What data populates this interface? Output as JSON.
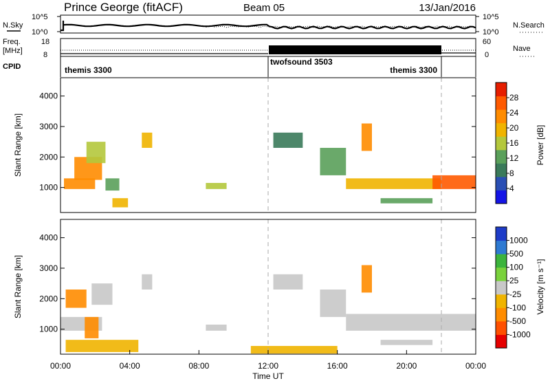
{
  "header": {
    "station": "Prince George (fitACF)",
    "beam": "Beam 05",
    "date": "13/Jan/2016"
  },
  "strip_labels": {
    "nsky": "N.Sky",
    "nsearch": "N.Search",
    "freq": "Freq.",
    "freq_unit": "[MHz]",
    "nave": "Nave",
    "cpid": "CPID",
    "noise_ticks": [
      "10^5",
      "10^0"
    ],
    "freq_ticks": [
      "18",
      "8"
    ],
    "nave_ticks": [
      "60",
      "0"
    ]
  },
  "cpid_segments": [
    {
      "label": "themis 3300",
      "start": 0,
      "end": 12
    },
    {
      "label": "twofsound 3503",
      "start": 12,
      "end": 22
    },
    {
      "label": "themis 3300",
      "start": 22,
      "end": 24
    }
  ],
  "colors": {
    "power": [
      "#1414e6",
      "#2a4fb4",
      "#3a7a5a",
      "#5aa05a",
      "#b4c83c",
      "#f0b400",
      "#ff8c00",
      "#ff5a00",
      "#e61e00"
    ],
    "velocity": [
      "#1e3cc8",
      "#2e7ad2",
      "#3cb43c",
      "#7ad23c",
      "#c8c8c8",
      "#f0b400",
      "#ff8c00",
      "#ff5000",
      "#e60000"
    ]
  },
  "chart_data": [
    {
      "type": "heatmap",
      "ylabel": "Slant Range [km]",
      "xlim": [
        0,
        24
      ],
      "ylim": [
        180,
        4600
      ],
      "yticks": [
        1000,
        2000,
        3000,
        4000
      ],
      "x_tick_labels": [
        "00:00",
        "04:00",
        "08:00",
        "12:00",
        "16:00",
        "20:00",
        "00:00"
      ],
      "xlabel": "Time UT",
      "colorbar": {
        "label": "Power [dB]",
        "ticks": [
          "28",
          "24",
          "20",
          "16",
          "12",
          "8",
          "4"
        ],
        "range": [
          0,
          30
        ]
      },
      "regions": [
        {
          "t0": 0.2,
          "t1": 2.0,
          "r0": 950,
          "r1": 1300,
          "value": 20
        },
        {
          "t0": 0.8,
          "t1": 2.4,
          "r0": 1250,
          "r1": 2000,
          "value": 22
        },
        {
          "t0": 1.5,
          "t1": 2.6,
          "r0": 1800,
          "r1": 2500,
          "value": 14
        },
        {
          "t0": 2.6,
          "t1": 3.4,
          "r0": 900,
          "r1": 1300,
          "value": 10
        },
        {
          "t0": 3.0,
          "t1": 3.9,
          "r0": 350,
          "r1": 650,
          "value": 18
        },
        {
          "t0": 4.7,
          "t1": 5.3,
          "r0": 2300,
          "r1": 2800,
          "value": 18
        },
        {
          "t0": 8.4,
          "t1": 9.6,
          "r0": 950,
          "r1": 1150,
          "value": 16
        },
        {
          "t0": 12.3,
          "t1": 14.0,
          "r0": 2300,
          "r1": 2800,
          "value": 8
        },
        {
          "t0": 15.0,
          "t1": 16.5,
          "r0": 1400,
          "r1": 2300,
          "value": 12
        },
        {
          "t0": 16.5,
          "t1": 22.0,
          "r0": 950,
          "r1": 1300,
          "value": 18
        },
        {
          "t0": 17.4,
          "t1": 18.0,
          "r0": 2200,
          "r1": 3100,
          "value": 20
        },
        {
          "t0": 18.5,
          "t1": 21.5,
          "r0": 480,
          "r1": 650,
          "value": 10
        },
        {
          "t0": 21.5,
          "t1": 24.0,
          "r0": 950,
          "r1": 1400,
          "value": 26
        }
      ]
    },
    {
      "type": "heatmap",
      "ylabel": "Slant Range [km]",
      "xlim": [
        0,
        24
      ],
      "ylim": [
        180,
        4600
      ],
      "yticks": [
        1000,
        2000,
        3000,
        4000
      ],
      "x_tick_labels": [
        "00:00",
        "04:00",
        "08:00",
        "12:00",
        "16:00",
        "20:00",
        "00:00"
      ],
      "xlabel": "Time UT",
      "colorbar": {
        "label": "Velocity [m s⁻¹]",
        "ticks": [
          "1000",
          "500",
          "100",
          "25",
          "-25",
          "-100",
          "-500",
          "-1000"
        ],
        "range": [
          -1200,
          1200
        ]
      },
      "regions": [
        {
          "t0": 0.0,
          "t1": 2.4,
          "r0": 950,
          "r1": 1400,
          "value": 0
        },
        {
          "t0": 0.3,
          "t1": 1.5,
          "r0": 1700,
          "r1": 2300,
          "value": -600
        },
        {
          "t0": 1.4,
          "t1": 2.2,
          "r0": 700,
          "r1": 1400,
          "value": -500
        },
        {
          "t0": 1.8,
          "t1": 3.0,
          "r0": 1800,
          "r1": 2500,
          "value": 0
        },
        {
          "t0": 0.3,
          "t1": 4.5,
          "r0": 250,
          "r1": 650,
          "value": -200
        },
        {
          "t0": 4.7,
          "t1": 5.3,
          "r0": 2300,
          "r1": 2800,
          "value": 0
        },
        {
          "t0": 8.4,
          "t1": 9.6,
          "r0": 950,
          "r1": 1150,
          "value": 0
        },
        {
          "t0": 12.3,
          "t1": 14.0,
          "r0": 2300,
          "r1": 2800,
          "value": 0
        },
        {
          "t0": 15.0,
          "t1": 16.5,
          "r0": 1400,
          "r1": 2300,
          "value": 0
        },
        {
          "t0": 16.5,
          "t1": 24.0,
          "r0": 950,
          "r1": 1500,
          "value": 0
        },
        {
          "t0": 17.4,
          "t1": 18.0,
          "r0": 2200,
          "r1": 3100,
          "value": -600
        },
        {
          "t0": 18.5,
          "t1": 21.5,
          "r0": 480,
          "r1": 650,
          "value": 0
        },
        {
          "t0": 11.0,
          "t1": 16.0,
          "r0": 200,
          "r1": 450,
          "value": -150
        }
      ]
    }
  ]
}
